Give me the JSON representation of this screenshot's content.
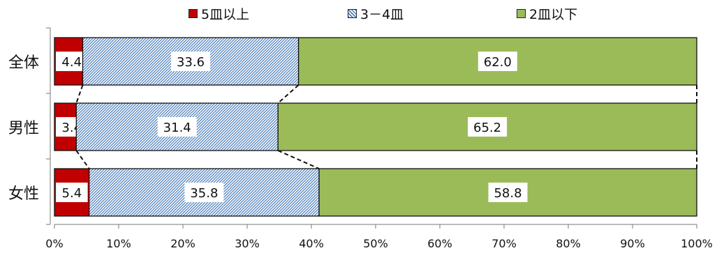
{
  "chart_data": {
    "type": "bar",
    "orientation": "horizontal",
    "stacked": true,
    "categories": [
      "全体",
      "男性",
      "女性"
    ],
    "series": [
      {
        "name": "5皿以上",
        "values": [
          4.4,
          3.4,
          5.4
        ],
        "color": "#c00000",
        "pattern": "solid"
      },
      {
        "name": "3－4皿",
        "values": [
          33.6,
          31.4,
          35.8
        ],
        "color": "#4f81bd",
        "pattern": "diagonal-hatch"
      },
      {
        "name": "2皿以下",
        "values": [
          62.0,
          65.2,
          58.8
        ],
        "color": "#9bbb59",
        "pattern": "solid"
      }
    ],
    "data_labels": [
      [
        "4.4",
        "33.6",
        "62.0"
      ],
      [
        "3.4",
        "31.4",
        "65.2"
      ],
      [
        "5.4",
        "35.8",
        "58.8"
      ]
    ],
    "xlim": [
      0,
      100
    ],
    "x_ticks": [
      "0%",
      "10%",
      "20%",
      "30%",
      "40%",
      "50%",
      "60%",
      "70%",
      "80%",
      "90%",
      "100%"
    ],
    "title": "",
    "xlabel": "",
    "ylabel": "",
    "legend_position": "top",
    "grid": false,
    "series_lines": true
  }
}
